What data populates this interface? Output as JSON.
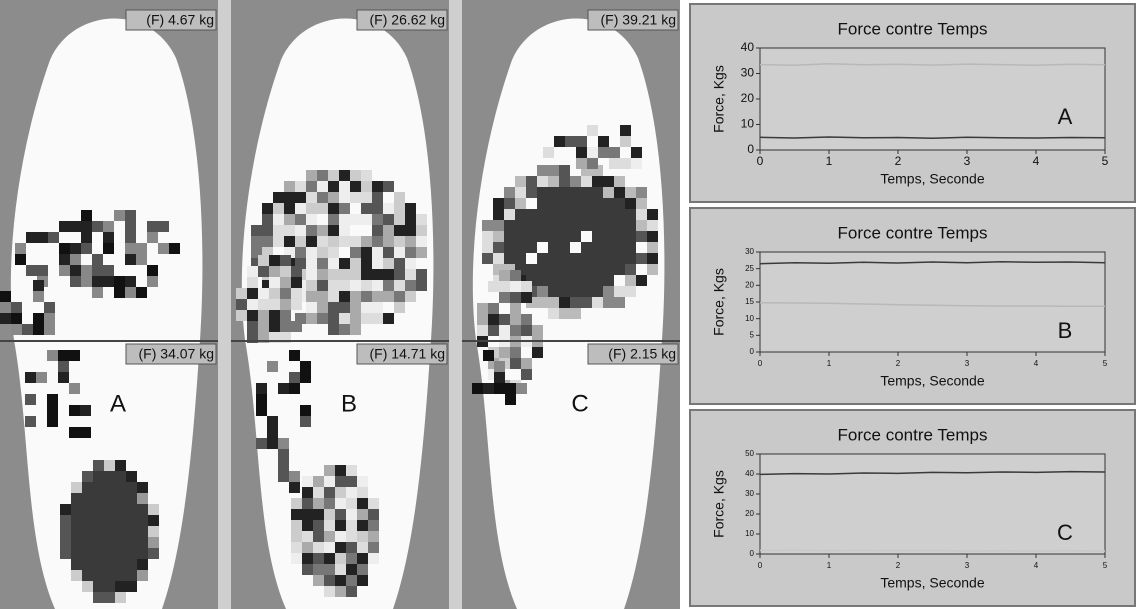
{
  "panels": [
    {
      "front": "(F) 4.67 kg",
      "rear": "(F) 34.07 kg",
      "label": "A"
    },
    {
      "front": "(F) 26.62 kg",
      "rear": "(F) 14.71 kg",
      "label": "B"
    },
    {
      "front": "(F) 39.21 kg",
      "rear": "(F) 2.15 kg",
      "label": "C"
    }
  ],
  "chart_data": [
    {
      "type": "line",
      "title": "Force contre Temps",
      "x_label": "Temps, Seconde",
      "y_label": "Force, Kgs",
      "annotation": "A",
      "x": [
        0,
        0.5,
        1,
        1.5,
        2,
        2.5,
        3,
        3.5,
        4,
        4.5,
        5
      ],
      "xlim": [
        0,
        5
      ],
      "xticks": [
        0,
        1,
        2,
        3,
        4,
        5
      ],
      "ylim": [
        0,
        40
      ],
      "yticks": [
        0,
        10,
        20,
        30,
        40
      ],
      "series": [
        {
          "color": "#b8b8b8",
          "values": [
            33.5,
            33.2,
            33.8,
            33.4,
            33.6,
            33.3,
            33.7,
            33.5,
            33.2,
            33.6,
            33.4
          ]
        },
        {
          "color": "#3a3a3a",
          "values": [
            5,
            4.7,
            5.1,
            4.8,
            4.9,
            4.6,
            5,
            4.8,
            4.7,
            4.9,
            4.8
          ]
        }
      ]
    },
    {
      "type": "line",
      "title": "Force contre Temps",
      "x_label": "Temps, Seconde",
      "y_label": "Force, Kgs",
      "annotation": "B",
      "x": [
        0,
        0.5,
        1,
        1.5,
        2,
        2.5,
        3,
        3.5,
        4,
        4.5,
        5
      ],
      "xlim": [
        0,
        5
      ],
      "xticks": [
        0,
        1,
        2,
        3,
        4,
        5
      ],
      "ylim": [
        0,
        30
      ],
      "yticks": [
        0,
        5,
        10,
        15,
        20,
        25,
        30
      ],
      "series": [
        {
          "color": "#3a3a3a",
          "values": [
            26.5,
            26.8,
            26.6,
            26.9,
            26.7,
            27,
            26.8,
            27.1,
            26.9,
            27,
            26.8
          ]
        },
        {
          "color": "#b8b8b8",
          "values": [
            14.8,
            14.7,
            14.6,
            14.4,
            14.2,
            14,
            13.9,
            13.8,
            13.8,
            13.7,
            13.7
          ]
        }
      ]
    },
    {
      "type": "line",
      "title": "Force contre Temps",
      "x_label": "Temps, Seconde",
      "y_label": "Force, Kgs",
      "annotation": "C",
      "x": [
        0,
        0.5,
        1,
        1.5,
        2,
        2.5,
        3,
        3.5,
        4,
        4.5,
        5
      ],
      "xlim": [
        0,
        5
      ],
      "xticks": [
        0,
        1,
        2,
        3,
        4,
        5
      ],
      "ylim": [
        0,
        50
      ],
      "yticks": [
        0,
        10,
        20,
        30,
        40,
        50
      ],
      "series": [
        {
          "color": "#3a3a3a",
          "values": [
            39.8,
            40.2,
            40,
            40.5,
            40.3,
            40.8,
            40.6,
            41,
            40.8,
            41.2,
            41
          ]
        },
        {
          "color": "#c8c8c8",
          "values": [
            1.8,
            1.9,
            1.7,
            1.8,
            1.6,
            1.7,
            1.5,
            1.6,
            1.5,
            1.6,
            1.5
          ]
        }
      ]
    }
  ]
}
